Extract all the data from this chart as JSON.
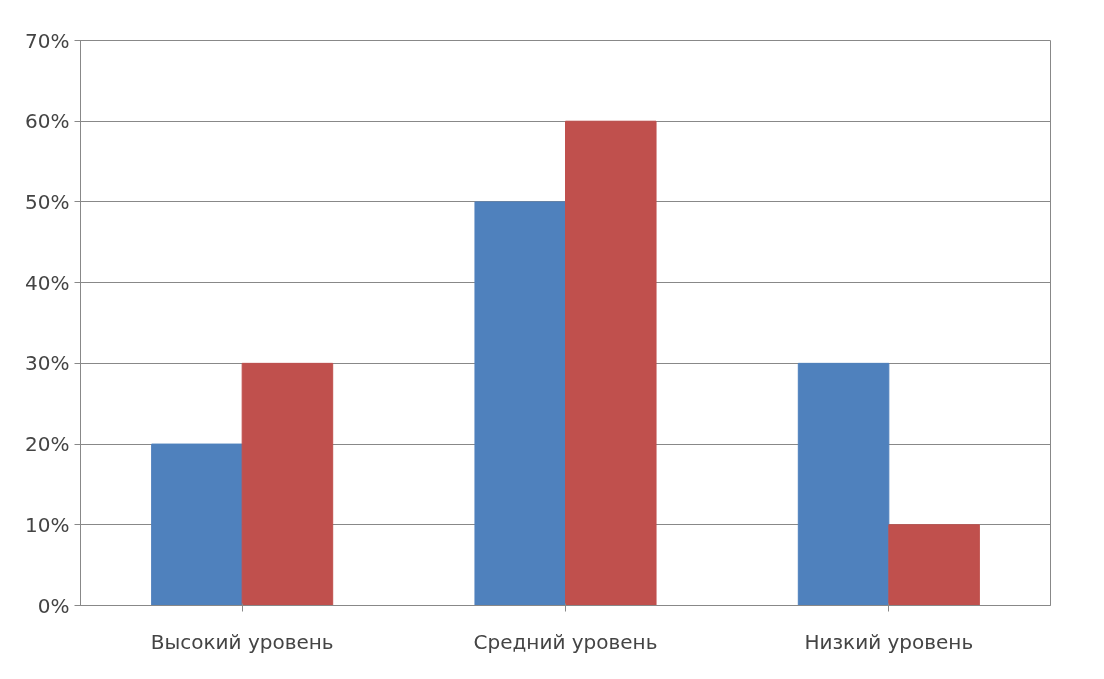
{
  "chart_data": {
    "type": "bar",
    "categories": [
      "Высокий уровень",
      "Средний уровень",
      "Низкий уровень"
    ],
    "series": [
      {
        "color": "#4f81bd",
        "values": [
          20,
          50,
          30
        ]
      },
      {
        "color": "#c0504d",
        "values": [
          30,
          60,
          10
        ]
      }
    ],
    "ylim": [
      0,
      70
    ],
    "yticks": [
      {
        "value": 0,
        "label": "0%"
      },
      {
        "value": 10,
        "label": "10%"
      },
      {
        "value": 20,
        "label": "20%"
      },
      {
        "value": 30,
        "label": "30%"
      },
      {
        "value": 40,
        "label": "40%"
      },
      {
        "value": 50,
        "label": "50%"
      },
      {
        "value": 60,
        "label": "60%"
      },
      {
        "value": 70,
        "label": "70%"
      }
    ],
    "grid": "y"
  }
}
